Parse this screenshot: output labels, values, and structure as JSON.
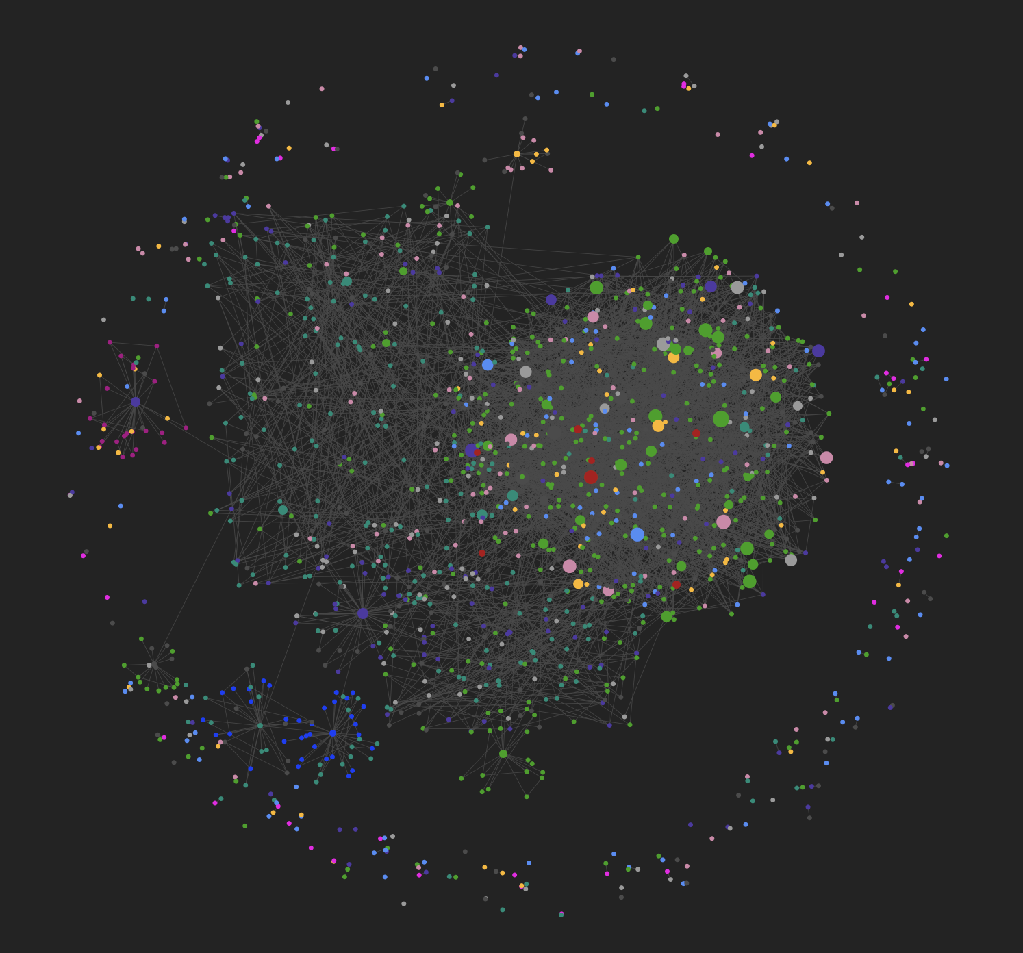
{
  "view": "graph",
  "colors": {
    "background": "#232323",
    "edge": "#4a4a4a",
    "unresolved": "#4b4b4b",
    "green": "#4f9e2f",
    "teal": "#3a8a78",
    "purple": "#4b3a9e",
    "blue": "#1f3ef0",
    "light_blue": "#5a8cf0",
    "red": "#a32421",
    "pink": "#c98aa8",
    "magenta": "#9c2180",
    "bright_magenta": "#e02de0",
    "yellow": "#f4b944",
    "gray": "#9a9a9a",
    "violet": "#7a58e6"
  }
}
